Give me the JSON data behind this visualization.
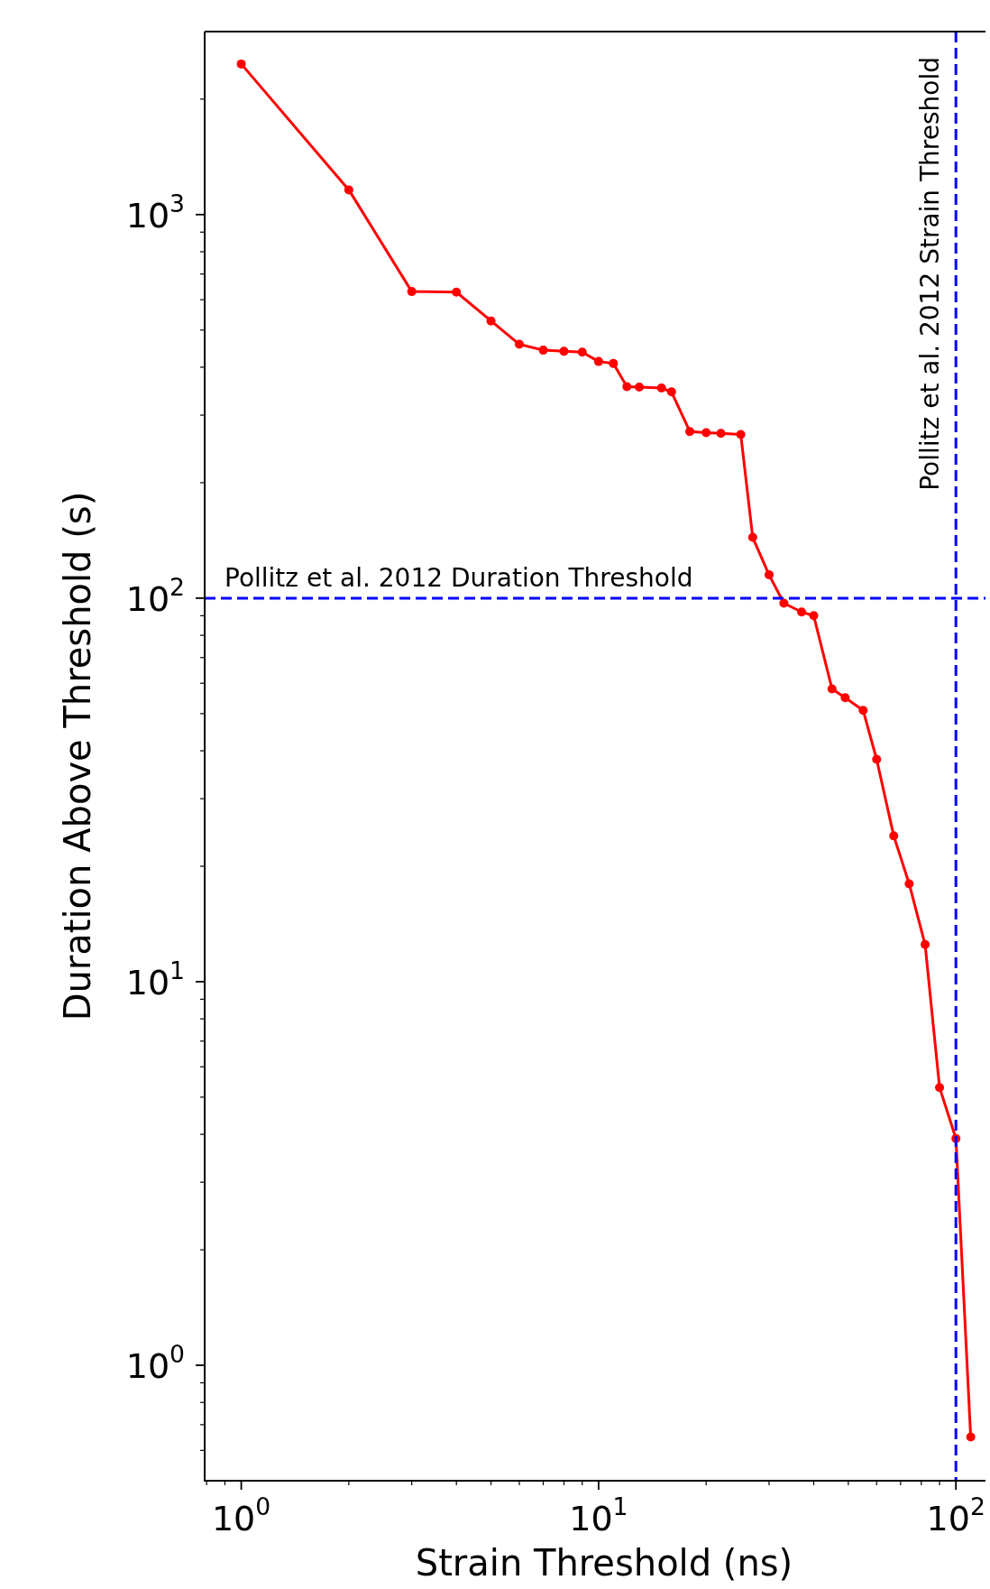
{
  "chart_data": {
    "type": "line",
    "xlabel": "Strain Threshold (ns)",
    "ylabel": "Duration Above Threshold (s)",
    "log": "xy",
    "marker": "circle",
    "line_style": "solid",
    "grid": false,
    "legend": false,
    "x": [
      1,
      2,
      3,
      4,
      5,
      6,
      7,
      8,
      9,
      10,
      11,
      12,
      13,
      15,
      16,
      18,
      20,
      22,
      25,
      27,
      30,
      33,
      37,
      40,
      45,
      49,
      55,
      60,
      67,
      74,
      82,
      90,
      100,
      110
    ],
    "series": [
      {
        "color": "#ff0000",
        "values": [
          2470,
          1160,
          630,
          628,
          528,
          459,
          443,
          440,
          438,
          414,
          409,
          356,
          355,
          353,
          345,
          272,
          270,
          269,
          267,
          144,
          115,
          97,
          92,
          90,
          58,
          55,
          51,
          38,
          24,
          18,
          12.5,
          5.3,
          3.9,
          0.65
        ]
      }
    ],
    "xlim": [
      0.79,
      121
    ],
    "ylim": [
      0.5,
      3000
    ],
    "xticks": [
      {
        "value": 0.8,
        "label": null
      },
      {
        "value": 0.9,
        "label": null
      },
      {
        "value": 1,
        "label": "10$^{0}$"
      },
      {
        "value": 2,
        "label": null
      },
      {
        "value": 3,
        "label": null
      },
      {
        "value": 4,
        "label": null
      },
      {
        "value": 5,
        "label": null
      },
      {
        "value": 6,
        "label": null
      },
      {
        "value": 7,
        "label": null
      },
      {
        "value": 8,
        "label": null
      },
      {
        "value": 9,
        "label": null
      },
      {
        "value": 10,
        "label": "10$^{1}$"
      },
      {
        "value": 20,
        "label": null
      },
      {
        "value": 30,
        "label": null
      },
      {
        "value": 40,
        "label": null
      },
      {
        "value": 50,
        "label": null
      },
      {
        "value": 60,
        "label": null
      },
      {
        "value": 70,
        "label": null
      },
      {
        "value": 80,
        "label": null
      },
      {
        "value": 90,
        "label": null
      },
      {
        "value": 100,
        "label": "10$^{2}$"
      }
    ],
    "yticks": [
      {
        "value": 0.6,
        "label": null
      },
      {
        "value": 0.7,
        "label": null
      },
      {
        "value": 0.8,
        "label": null
      },
      {
        "value": 0.9,
        "label": null
      },
      {
        "value": 1,
        "label": "10$^{0}$"
      },
      {
        "value": 2,
        "label": null
      },
      {
        "value": 3,
        "label": null
      },
      {
        "value": 4,
        "label": null
      },
      {
        "value": 5,
        "label": null
      },
      {
        "value": 6,
        "label": null
      },
      {
        "value": 7,
        "label": null
      },
      {
        "value": 8,
        "label": null
      },
      {
        "value": 9,
        "label": null
      },
      {
        "value": 10,
        "label": "10$^{1}$"
      },
      {
        "value": 20,
        "label": null
      },
      {
        "value": 30,
        "label": null
      },
      {
        "value": 40,
        "label": null
      },
      {
        "value": 50,
        "label": null
      },
      {
        "value": 60,
        "label": null
      },
      {
        "value": 70,
        "label": null
      },
      {
        "value": 80,
        "label": null
      },
      {
        "value": 90,
        "label": null
      },
      {
        "value": 100,
        "label": "10$^{2}$"
      },
      {
        "value": 200,
        "label": null
      },
      {
        "value": 300,
        "label": null
      },
      {
        "value": 400,
        "label": null
      },
      {
        "value": 500,
        "label": null
      },
      {
        "value": 600,
        "label": null
      },
      {
        "value": 700,
        "label": null
      },
      {
        "value": 800,
        "label": null
      },
      {
        "value": 900,
        "label": null
      },
      {
        "value": 1000,
        "label": "10$^{3}$"
      },
      {
        "value": 2000,
        "label": null
      }
    ],
    "ref_lines": [
      {
        "axis": "y",
        "value": 100,
        "label": "Pollitz et al. 2012 Duration Threshold",
        "color": "#0000ff",
        "line_style": "dashed"
      },
      {
        "axis": "x",
        "value": 100,
        "label": "Pollitz et al. 2012 Strain Threshold",
        "color": "#0000ff",
        "line_style": "dashed"
      }
    ]
  }
}
